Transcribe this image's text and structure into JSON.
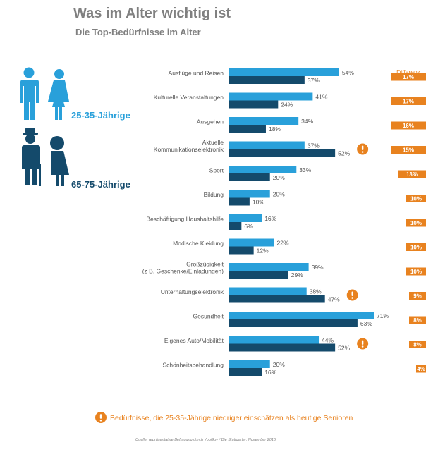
{
  "title": "Was im Alter wichtig ist",
  "subtitle": "Die Top-Bedürfnisse im Alter",
  "legend": {
    "young_label": "25-35-Jährige",
    "old_label": "65-75-Jährige"
  },
  "diff_header": "Differenz",
  "footnote": "Bedürfnisse, die 25-35-Jährige niedriger einschätzen als heutige Senioren",
  "source": "Quelle: repräsentative Befragung durch YouGov / Die Stuttgarter, November 2016",
  "colors": {
    "young": "#29a0da",
    "old": "#144a6b",
    "accent": "#e8821f",
    "text": "#555555"
  },
  "chart_data": {
    "type": "bar",
    "orientation": "horizontal",
    "unit": "%",
    "xlim": [
      0,
      71
    ],
    "categories": [
      [
        "Ausflüge und Reisen"
      ],
      [
        "Kulturelle Veranstaltungen"
      ],
      [
        "Ausgehen"
      ],
      [
        "Aktuelle",
        "Kommunikationselektronik"
      ],
      [
        "Sport"
      ],
      [
        "Bildung"
      ],
      [
        "Beschäftigung Haushaltshilfe"
      ],
      [
        "Modische Kleidung"
      ],
      [
        "Großzügigkeit",
        "(z B. Geschenke/Einladungen)"
      ],
      [
        "Unterhaltungselektronik"
      ],
      [
        "Gesundheit"
      ],
      [
        "Eigenes Auto/Mobilität"
      ],
      [
        "Schönheitsbehandlung"
      ]
    ],
    "series": [
      {
        "name": "25-35-Jährige",
        "values": [
          54,
          41,
          34,
          37,
          33,
          20,
          16,
          22,
          39,
          38,
          71,
          44,
          20
        ]
      },
      {
        "name": "65-75-Jährige",
        "values": [
          37,
          24,
          18,
          52,
          20,
          10,
          6,
          12,
          29,
          47,
          63,
          52,
          16
        ]
      }
    ],
    "differenz": [
      "17%",
      "17%",
      "16%",
      "15%",
      "13%",
      "10%",
      "10%",
      "10%",
      "10%",
      "9%",
      "8%",
      "8%",
      "4%"
    ],
    "flagged": [
      false,
      false,
      false,
      true,
      false,
      false,
      false,
      false,
      false,
      true,
      false,
      true,
      false
    ]
  }
}
